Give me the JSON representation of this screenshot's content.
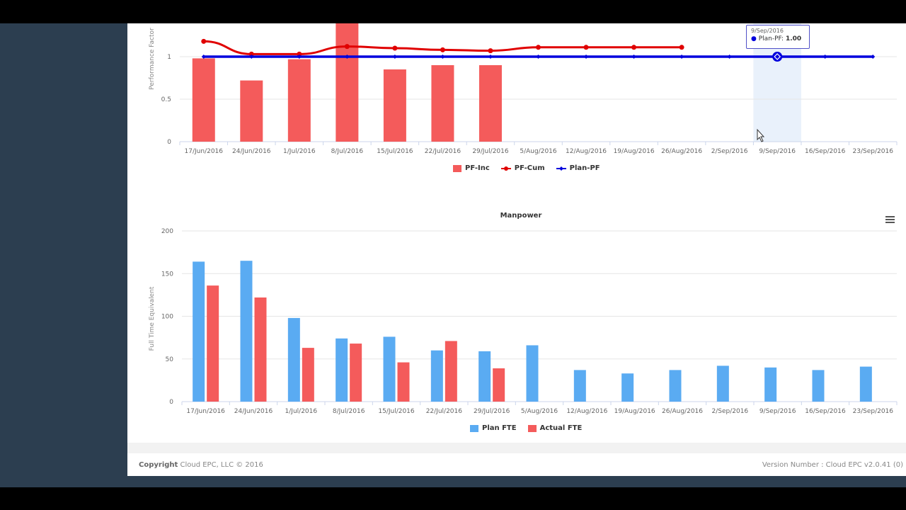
{
  "footer": {
    "copyright_label": "Copyright",
    "copyright_text": "Cloud EPC, LLC © 2016",
    "version": "Version Number : Cloud EPC v2.0.41 (0)"
  },
  "tooltip": {
    "date": "9/Sep/2016",
    "series": "Plan-PF",
    "value": "1.00"
  },
  "chart_data": [
    {
      "type": "bar+line",
      "title": "",
      "ylabel": "Performance Factor",
      "yticks": [
        "0",
        "0.5",
        "1"
      ],
      "ylim": [
        0,
        1.4
      ],
      "grid": true,
      "legend": "bottom-center",
      "categories": [
        "17/Jun/2016",
        "24/Jun/2016",
        "1/Jul/2016",
        "8/Jul/2016",
        "15/Jul/2016",
        "22/Jul/2016",
        "29/Jul/2016",
        "5/Aug/2016",
        "12/Aug/2016",
        "19/Aug/2016",
        "26/Aug/2016",
        "2/Sep/2016",
        "9/Sep/2016",
        "16/Sep/2016",
        "23/Sep/2016"
      ],
      "series": [
        {
          "name": "PF-Inc",
          "type": "bar",
          "color": "#f45b5b",
          "values": [
            0.98,
            0.72,
            0.97,
            1.5,
            0.85,
            0.9,
            0.9,
            null,
            null,
            null,
            null,
            null,
            null,
            null,
            null
          ]
        },
        {
          "name": "PF-Cum",
          "type": "spline",
          "color": "#e00000",
          "values": [
            1.18,
            1.03,
            1.03,
            1.12,
            1.1,
            1.08,
            1.07,
            1.11,
            1.11,
            1.11,
            1.11,
            null,
            null,
            null,
            null
          ]
        },
        {
          "name": "Plan-PF",
          "type": "line",
          "color": "#0000dd",
          "values": [
            1,
            1,
            1,
            1,
            1,
            1,
            1,
            1,
            1,
            1,
            1,
            1,
            1,
            1,
            1
          ]
        }
      ],
      "highlight_category": "9/Sep/2016"
    },
    {
      "type": "bar",
      "title": "Manpower",
      "ylabel": "Full Time Equivalent",
      "yticks": [
        "0",
        "50",
        "100",
        "150",
        "200"
      ],
      "ylim": [
        0,
        200
      ],
      "grid": true,
      "legend": "bottom-center",
      "categories": [
        "17/Jun/2016",
        "24/Jun/2016",
        "1/Jul/2016",
        "8/Jul/2016",
        "15/Jul/2016",
        "22/Jul/2016",
        "29/Jul/2016",
        "5/Aug/2016",
        "12/Aug/2016",
        "19/Aug/2016",
        "26/Aug/2016",
        "2/Sep/2016",
        "9/Sep/2016",
        "16/Sep/2016",
        "23/Sep/2016"
      ],
      "series": [
        {
          "name": "Plan FTE",
          "color": "#5aabf2",
          "values": [
            164,
            165,
            98,
            74,
            76,
            60,
            59,
            66,
            37,
            33,
            37,
            42,
            40,
            37,
            41
          ]
        },
        {
          "name": "Actual FTE",
          "color": "#f45b5b",
          "values": [
            136,
            122,
            63,
            68,
            46,
            71,
            39,
            null,
            null,
            null,
            null,
            null,
            null,
            null,
            null
          ]
        }
      ]
    }
  ]
}
